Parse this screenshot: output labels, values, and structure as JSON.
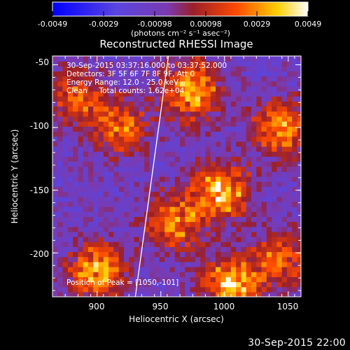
{
  "colorbar": {
    "ticks": [
      "-0.0049",
      "-0.0029",
      "-0.00098",
      "0.00098",
      "0.0029",
      "0.0049"
    ],
    "units_label": "(photons cm⁻² s⁻¹ asec⁻²)",
    "colors": [
      "#0000ff",
      "#6a3fd0",
      "#7b3bb5",
      "#a01818",
      "#ff4a00",
      "#ffd200",
      "#ffffff"
    ]
  },
  "annotations": {
    "time_range": "30-Sep-2015 03:37:16.000 to 03:37:52.000",
    "detectors": "Detectors: 3F 5F 6F 7F 8F 9F, Att 0",
    "energy_range": "Energy Range: 12.0 - 25.0 keV",
    "clean_total": "Clean     Total counts: 1.62e+04",
    "peak_position": "Position of Peak = [1050,-101]"
  },
  "footer": {
    "timestamp": "30-Sep-2015 22:00"
  },
  "chart_data": {
    "type": "heatmap",
    "title": "Reconstructed RHESSI Image",
    "xlabel": "Heliocentric X (arcsec)",
    "ylabel": "Heliocentric Y (arcsec)",
    "xlim": [
      865,
      1060
    ],
    "ylim": [
      -235,
      -43
    ],
    "xticks": [
      900,
      950,
      1000,
      1050
    ],
    "yticks": [
      -50,
      -100,
      -150,
      -200
    ],
    "zlim": [
      -0.0049,
      0.0049
    ],
    "peak": [
      1050,
      -101
    ],
    "limb_line": [
      [
        930,
        -235
      ],
      [
        956,
        -43
      ]
    ],
    "hot_sources": [
      {
        "x": 975,
        "y": -70,
        "peak": 0.0049
      },
      {
        "x": 1045,
        "y": -100,
        "peak": 0.0042
      },
      {
        "x": 918,
        "y": -100,
        "peak": 0.0035
      },
      {
        "x": 998,
        "y": -150,
        "peak": 0.0049
      },
      {
        "x": 960,
        "y": -175,
        "peak": 0.004
      },
      {
        "x": 900,
        "y": -215,
        "peak": 0.0045
      },
      {
        "x": 1005,
        "y": -225,
        "peak": 0.0049
      },
      {
        "x": 1045,
        "y": -205,
        "peak": 0.0033
      },
      {
        "x": 885,
        "y": -75,
        "peak": 0.003
      }
    ]
  }
}
